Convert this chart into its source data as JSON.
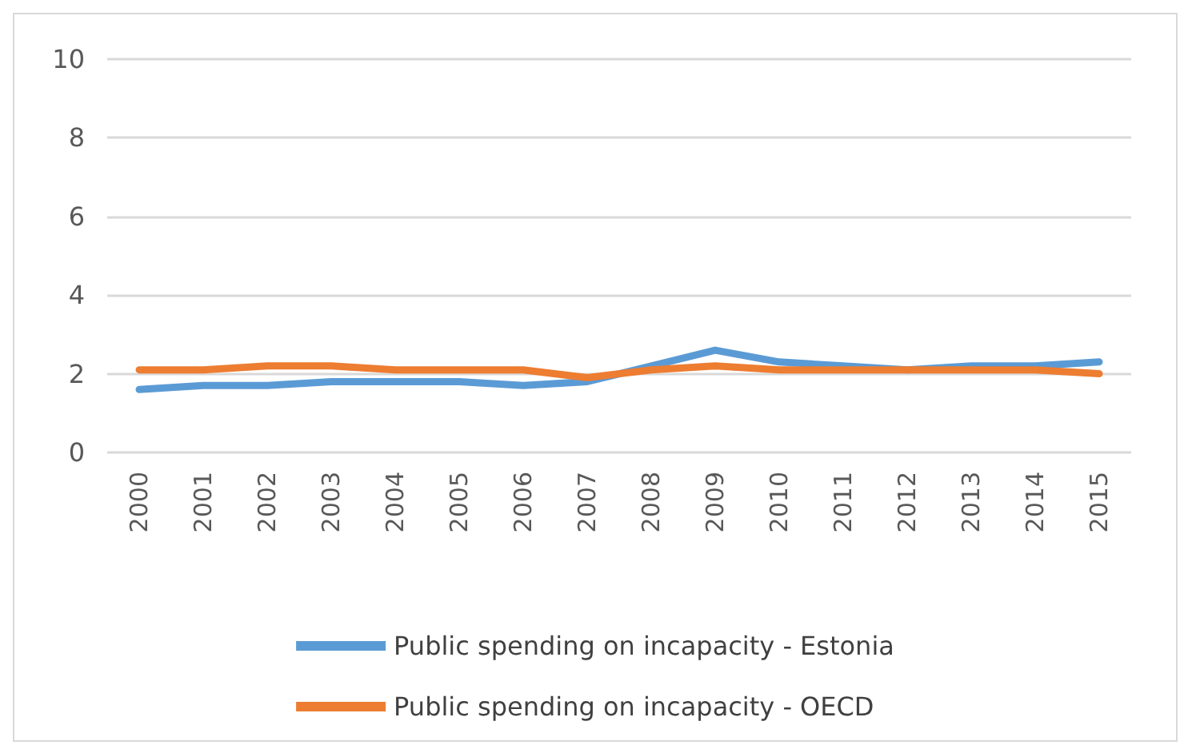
{
  "chart_data": {
    "type": "line",
    "categories": [
      "2000",
      "2001",
      "2002",
      "2003",
      "2004",
      "2005",
      "2006",
      "2007",
      "2008",
      "2009",
      "2010",
      "2011",
      "2012",
      "2013",
      "2014",
      "2015"
    ],
    "series": [
      {
        "name": "Public spending on incapacity - Estonia",
        "color": "#5b9bd5",
        "values": [
          1.6,
          1.7,
          1.7,
          1.8,
          1.8,
          1.8,
          1.7,
          1.8,
          2.2,
          2.6,
          2.3,
          2.2,
          2.1,
          2.2,
          2.2,
          2.3
        ]
      },
      {
        "name": "Public spending on incapacity - OECD",
        "color": "#ed7d31",
        "values": [
          2.1,
          2.1,
          2.2,
          2.2,
          2.1,
          2.1,
          2.1,
          1.9,
          2.1,
          2.2,
          2.1,
          2.1,
          2.1,
          2.1,
          2.1,
          2.0
        ]
      }
    ],
    "ylim": [
      0,
      10
    ],
    "yticks": [
      0,
      2,
      4,
      6,
      8,
      10
    ],
    "grid": "y",
    "legend": "bottom",
    "marker": "none",
    "line_style": "solid"
  }
}
